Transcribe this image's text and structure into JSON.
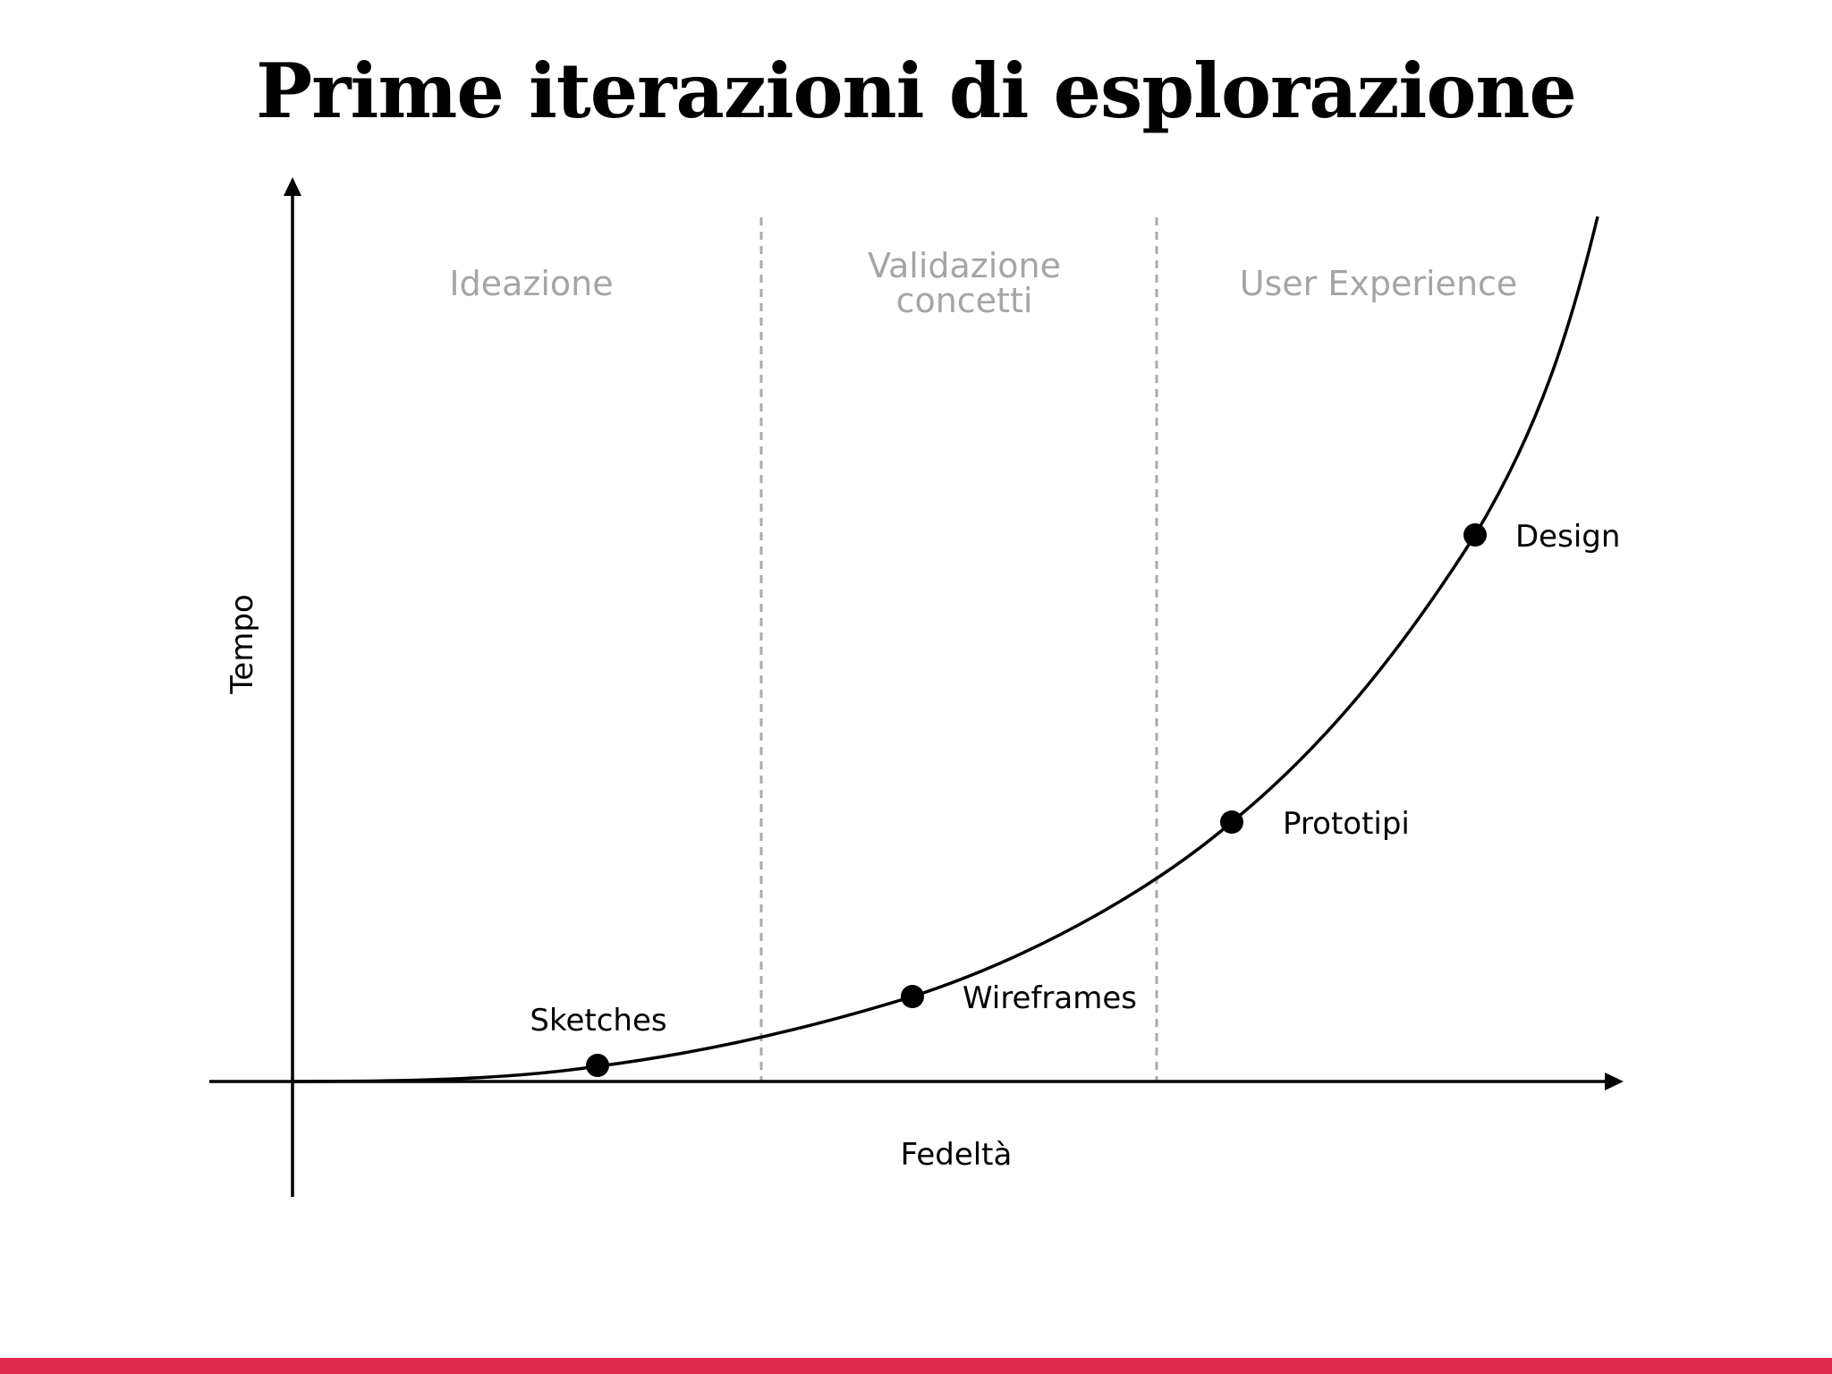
{
  "title": "Prime iterazioni di esplorazione",
  "axes": {
    "x_label": "Fedeltà",
    "y_label": "Tempo"
  },
  "phases": [
    {
      "lines": [
        "Ideazione"
      ]
    },
    {
      "lines": [
        "Validazione",
        "concetti"
      ]
    },
    {
      "lines": [
        "User Experience"
      ]
    }
  ],
  "points": [
    {
      "label": "Sketches"
    },
    {
      "label": "Wireframes"
    },
    {
      "label": "Prototipi"
    },
    {
      "label": "Design"
    }
  ],
  "colors": {
    "accent": "#e0294c",
    "phase_text": "#a5a5a5",
    "divider": "#aaaaaa",
    "ink": "#000000"
  }
}
